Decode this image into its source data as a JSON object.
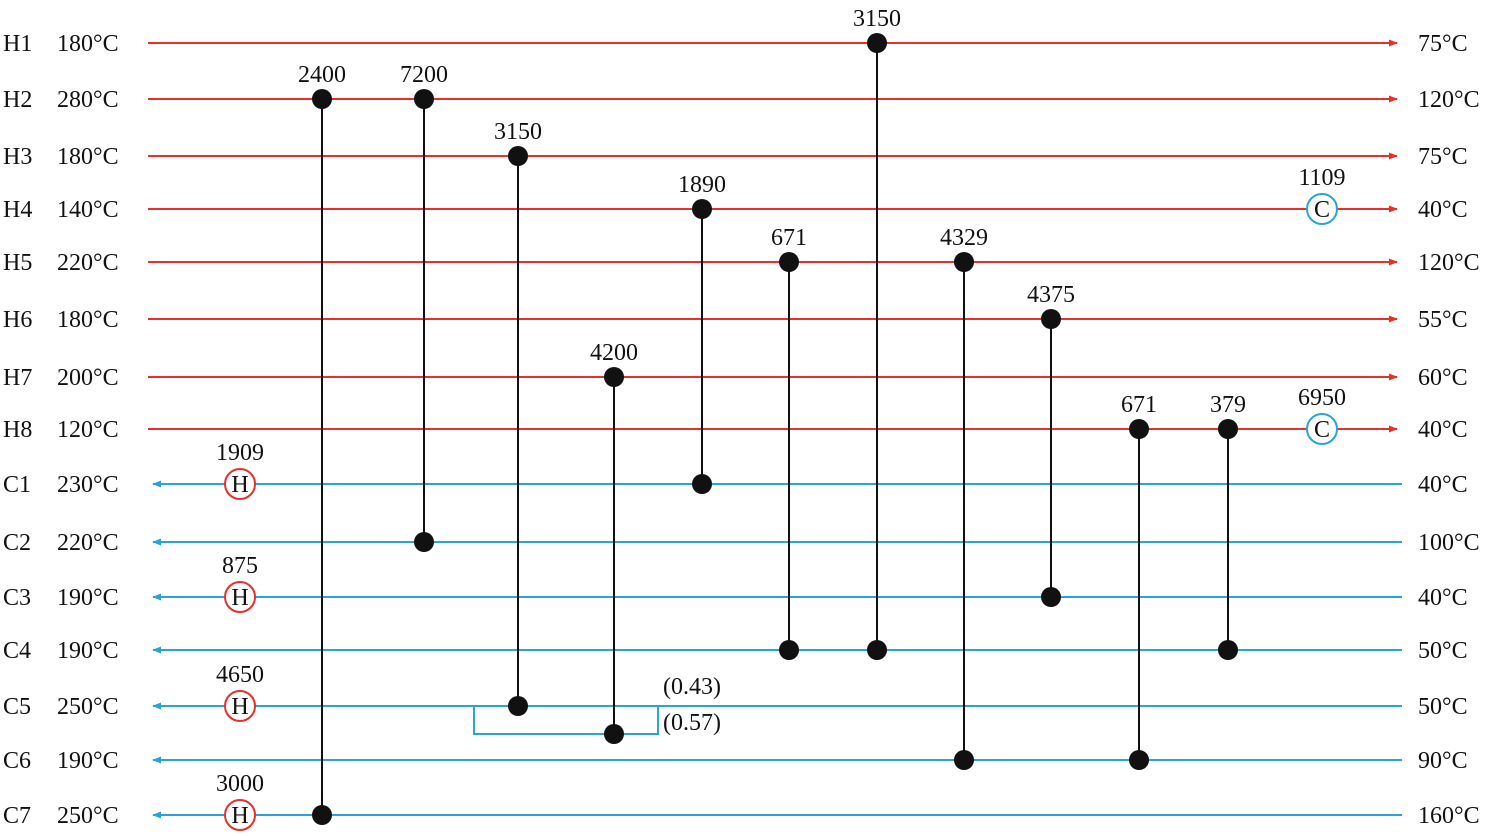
{
  "colors": {
    "hot": "#e8302a",
    "cold": "#29a3d8",
    "match": "#111111"
  },
  "hot_streams": [
    {
      "id": "H1",
      "supply": "180°C",
      "target": "75°C"
    },
    {
      "id": "H2",
      "supply": "280°C",
      "target": "120°C"
    },
    {
      "id": "H3",
      "supply": "180°C",
      "target": "75°C"
    },
    {
      "id": "H4",
      "supply": "140°C",
      "target": "40°C"
    },
    {
      "id": "H5",
      "supply": "220°C",
      "target": "120°C"
    },
    {
      "id": "H6",
      "supply": "180°C",
      "target": "55°C"
    },
    {
      "id": "H7",
      "supply": "200°C",
      "target": "60°C"
    },
    {
      "id": "H8",
      "supply": "120°C",
      "target": "40°C"
    }
  ],
  "cold_streams": [
    {
      "id": "C1",
      "target": "230°C",
      "supply": "40°C"
    },
    {
      "id": "C2",
      "target": "220°C",
      "supply": "100°C"
    },
    {
      "id": "C3",
      "target": "190°C",
      "supply": "40°C"
    },
    {
      "id": "C4",
      "target": "190°C",
      "supply": "50°C"
    },
    {
      "id": "C5",
      "target": "250°C",
      "supply": "50°C"
    },
    {
      "id": "C6",
      "target": "190°C",
      "supply": "90°C"
    },
    {
      "id": "C7",
      "target": "250°C",
      "supply": "160°C"
    }
  ],
  "exchangers": [
    {
      "hot": "H1",
      "cold": "C4",
      "duty": "3150"
    },
    {
      "hot": "H2",
      "cold": "C7",
      "duty": "2400"
    },
    {
      "hot": "H2",
      "cold": "C2",
      "duty": "7200"
    },
    {
      "hot": "H3",
      "cold": "C5",
      "duty": "3150",
      "branch": "upper"
    },
    {
      "hot": "H4",
      "cold": "C1",
      "duty": "1890"
    },
    {
      "hot": "H5",
      "cold": "C4",
      "duty": "671"
    },
    {
      "hot": "H5",
      "cold": "C6",
      "duty": "4329"
    },
    {
      "hot": "H6",
      "cold": "C3",
      "duty": "4375"
    },
    {
      "hot": "H7",
      "cold": "C5",
      "duty": "4200",
      "branch": "lower"
    },
    {
      "hot": "H8",
      "cold": "C6",
      "duty": "671"
    },
    {
      "hot": "H8",
      "cold": "C4",
      "duty": "379"
    }
  ],
  "heaters": [
    {
      "stream": "C1",
      "duty": "1909",
      "symbol": "H"
    },
    {
      "stream": "C3",
      "duty": "875",
      "symbol": "H"
    },
    {
      "stream": "C5",
      "duty": "4650",
      "symbol": "H"
    },
    {
      "stream": "C7",
      "duty": "3000",
      "symbol": "H"
    }
  ],
  "coolers": [
    {
      "stream": "H4",
      "duty": "1109",
      "symbol": "C"
    },
    {
      "stream": "H8",
      "duty": "6950",
      "symbol": "C"
    }
  ],
  "split": {
    "stream": "C5",
    "upper_fraction": "(0.43)",
    "lower_fraction": "(0.57)"
  }
}
